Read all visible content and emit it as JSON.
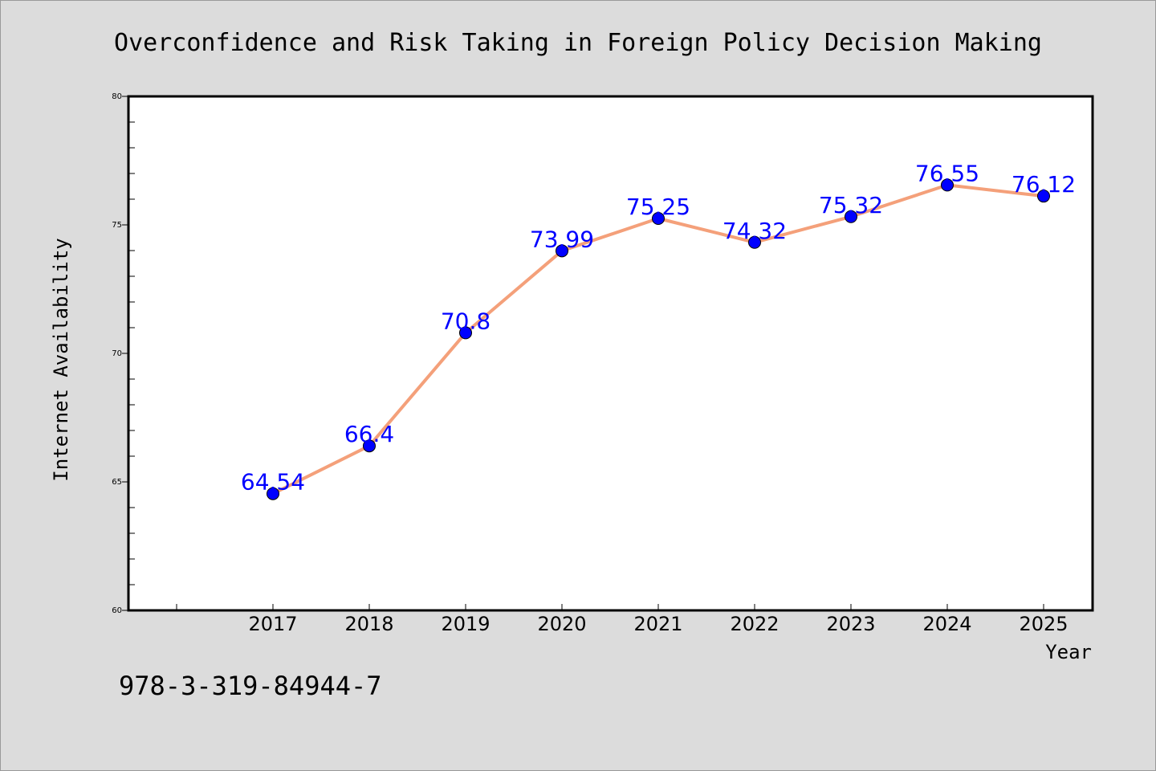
{
  "colors": {
    "background": "#dcdcdc",
    "plot_background": "#ffffff",
    "line": "#f4a07a",
    "marker": "#0000ff",
    "data_label": "#0000ff"
  },
  "footer": {
    "isbn": "978-3-319-84944-7"
  },
  "chart_data": {
    "type": "line",
    "title": "Overconfidence and Risk Taking in Foreign Policy Decision Making",
    "xlabel": "Year",
    "ylabel": "Internet Availability",
    "categories": [
      "2017",
      "2018",
      "2019",
      "2020",
      "2021",
      "2022",
      "2023",
      "2024",
      "2025"
    ],
    "series": [
      {
        "values": [
          64.54,
          66.4,
          70.8,
          73.99,
          75.25,
          74.32,
          75.32,
          76.55,
          76.12
        ],
        "labels": [
          "64.54",
          "66.4",
          "70.8",
          "73.99",
          "75.25",
          "74.32",
          "75.32",
          "76.55",
          "76.12"
        ]
      }
    ],
    "ylim": [
      60,
      80
    ],
    "yticks": [
      "60",
      "65",
      "70",
      "75",
      "80"
    ],
    "grid": false,
    "legend": "none"
  }
}
